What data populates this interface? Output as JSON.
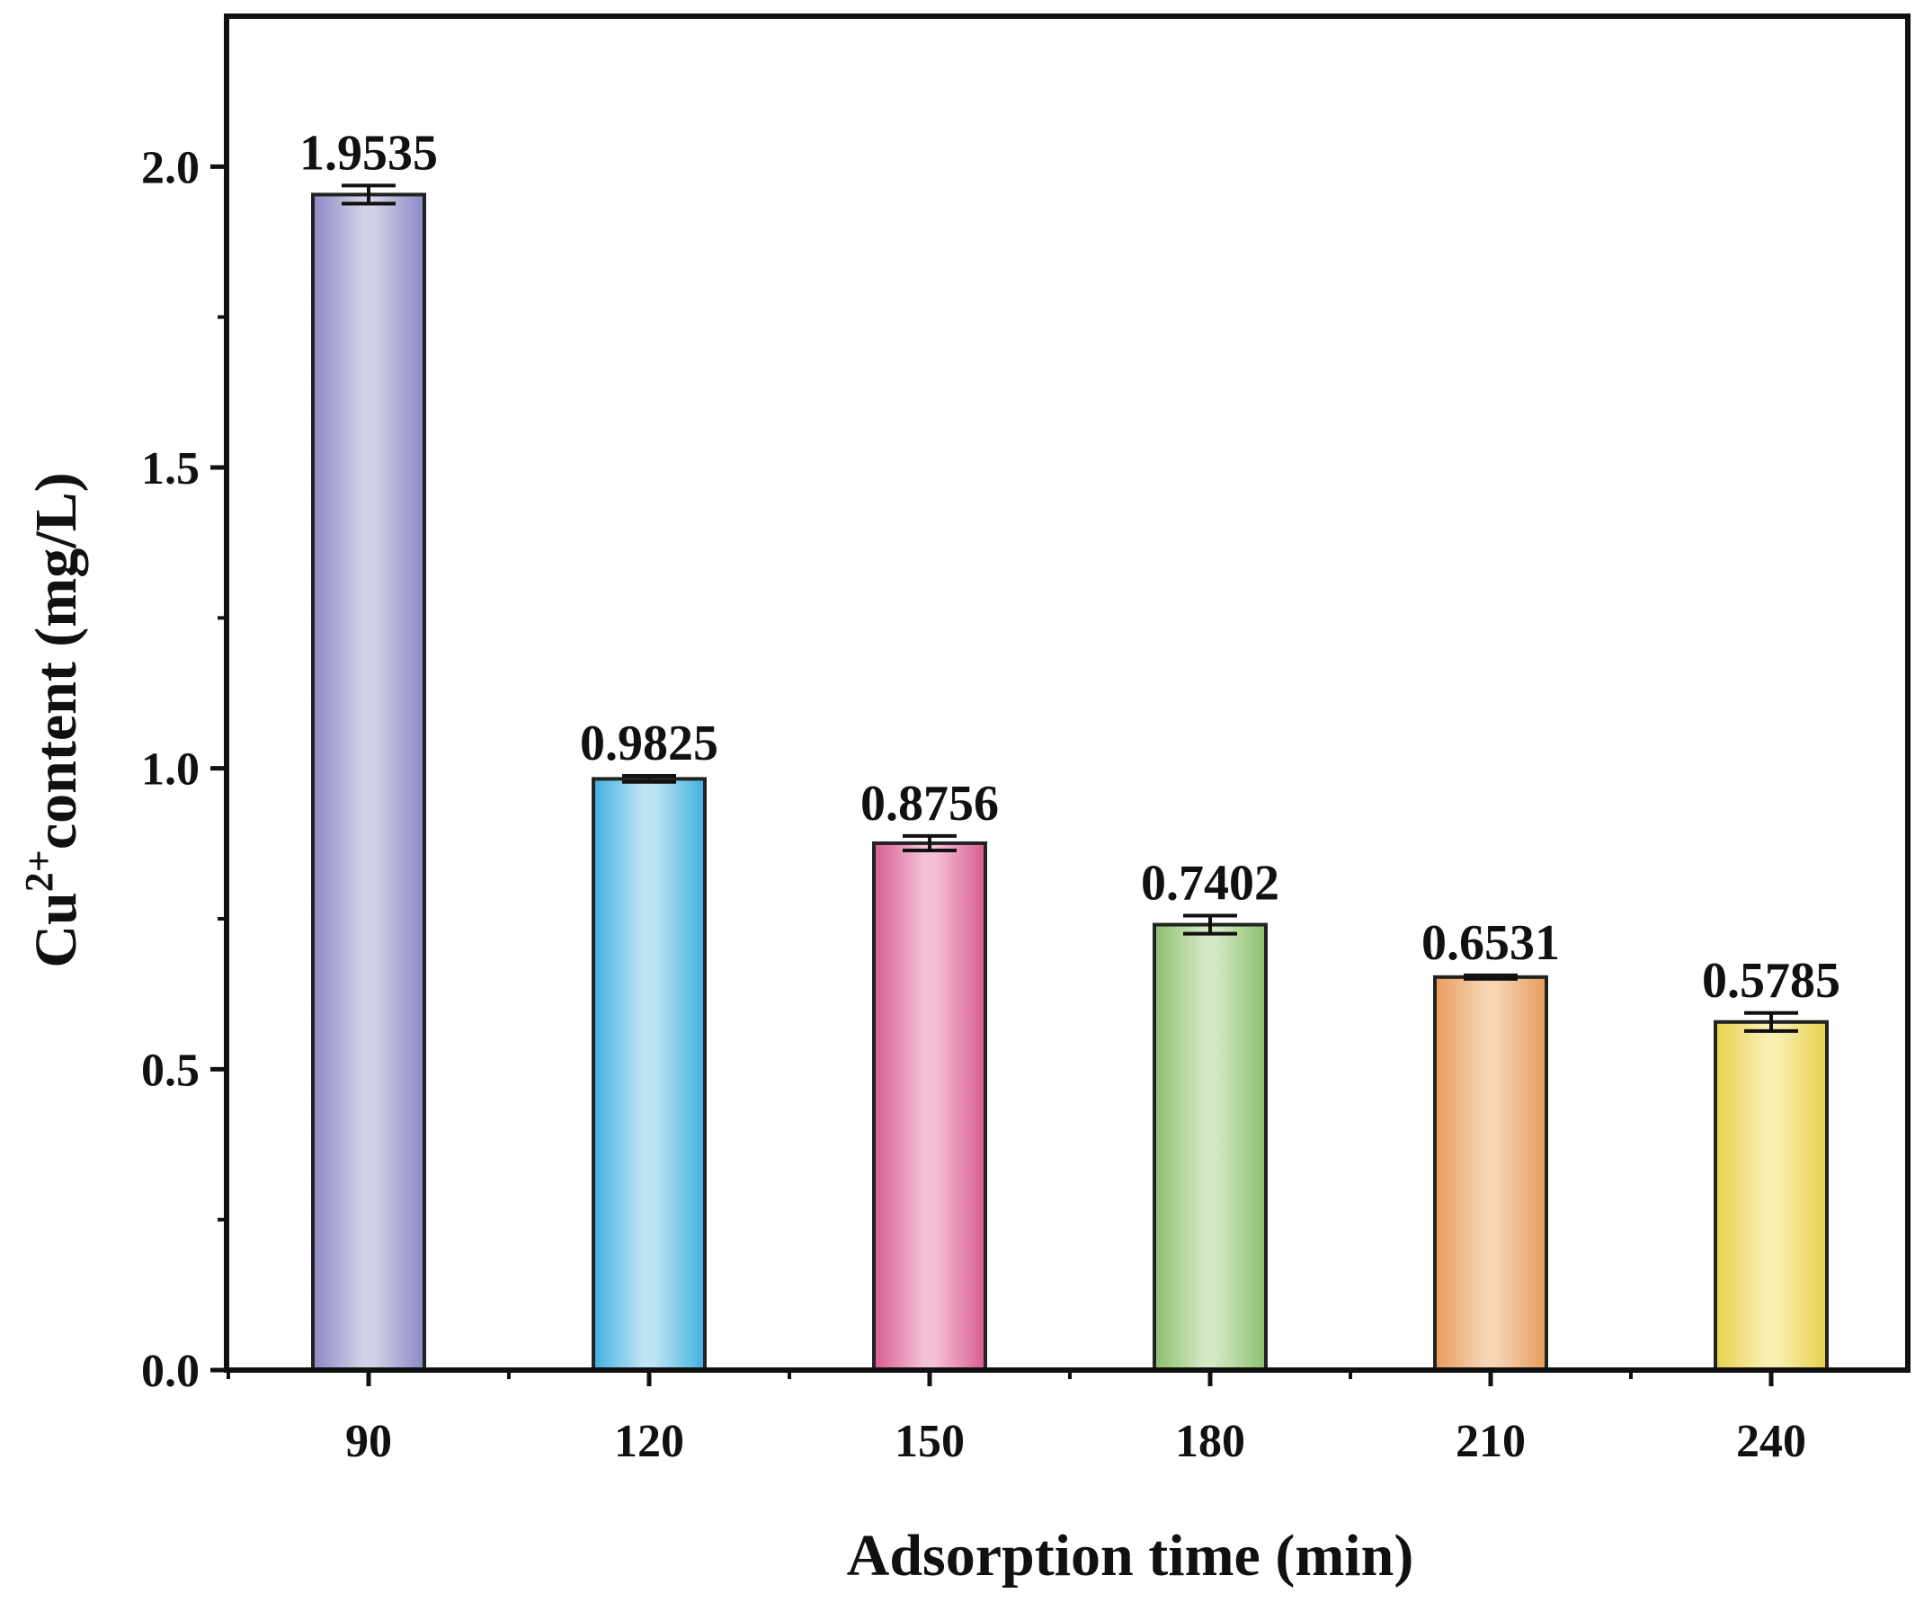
{
  "chart_data": {
    "type": "bar",
    "categories": [
      "90",
      "120",
      "150",
      "180",
      "210",
      "240"
    ],
    "values": [
      1.9535,
      0.9825,
      0.8756,
      0.7402,
      0.6531,
      0.5785
    ],
    "value_labels": [
      "1.9535",
      "0.9825",
      "0.8756",
      "0.7402",
      "0.6531",
      "0.5785"
    ],
    "errors": [
      0.015,
      0.005,
      0.012,
      0.015,
      0.003,
      0.015
    ],
    "colors": [
      {
        "dark": "#8b89c3",
        "light": "#d2d1e8"
      },
      {
        "dark": "#3fb0e0",
        "light": "#bfe4f5"
      },
      {
        "dark": "#d85b92",
        "light": "#f3c0d5"
      },
      {
        "dark": "#8cc06e",
        "light": "#d3e8c3"
      },
      {
        "dark": "#e89c5c",
        "light": "#f6d4b4"
      },
      {
        "dark": "#e8d04a",
        "light": "#f8efb2"
      }
    ],
    "xlabel": "Adsorption time (min)",
    "ylabel": {
      "prefix": "Cu",
      "superscript": "2+",
      "suffix": "content (mg/L)"
    },
    "ylim": [
      0,
      2.25
    ],
    "yticks": [
      "0.0",
      "0.5",
      "1.0",
      "1.5",
      "2.0"
    ],
    "ytick_values": [
      0,
      0.5,
      1.0,
      1.5,
      2.0
    ],
    "grid": false
  }
}
